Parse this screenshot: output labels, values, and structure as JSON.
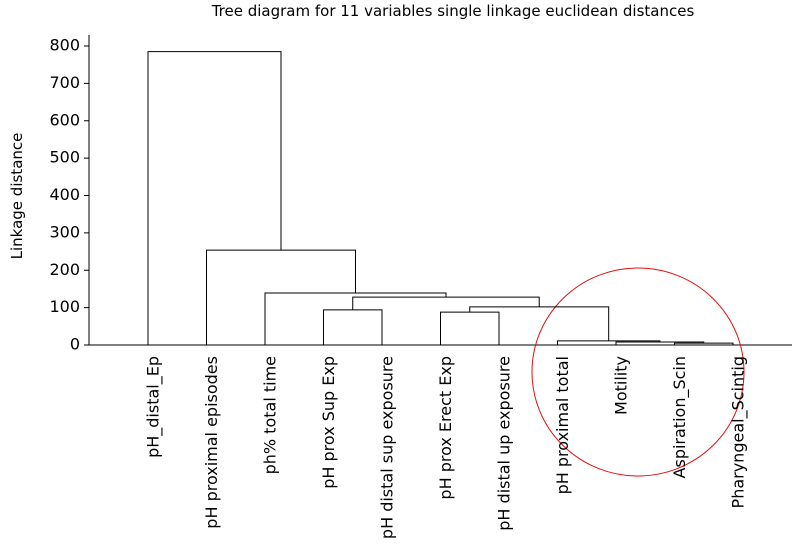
{
  "chart_data": {
    "type": "dendrogram",
    "title": "Tree diagram for 11 variables single linkage euclidean distances",
    "y_label": "Linkage distance",
    "categories": [
      "pH_distal_Ep",
      "pH proximal episodes",
      "ph% total time",
      "pH prox Sup Exp",
      "pH distal sup exposure",
      "pH prox Erect Exp",
      "pH distal up exposure",
      "pH proximal total",
      "Motility",
      "Aspiration_Scin",
      "Pharyngeal_Scintig"
    ],
    "merges": [
      {
        "left": 9,
        "right": 10,
        "height": 5
      },
      {
        "left": 8,
        "right": 11,
        "height": 8
      },
      {
        "left": 7,
        "right": 12,
        "height": 11
      },
      {
        "left": 5,
        "right": 6,
        "height": 88
      },
      {
        "left": 3,
        "right": 4,
        "height": 94
      },
      {
        "left": 14,
        "right": 13,
        "height": 102
      },
      {
        "left": 15,
        "right": 16,
        "height": 128
      },
      {
        "left": 2,
        "right": 17,
        "height": 139
      },
      {
        "left": 1,
        "right": 18,
        "height": 254
      },
      {
        "left": 0,
        "right": 19,
        "height": 785
      }
    ],
    "ylim": [
      0,
      800
    ],
    "yticks": [
      0,
      100,
      200,
      300,
      400,
      500,
      600,
      700,
      800
    ],
    "color": "#000000"
  }
}
